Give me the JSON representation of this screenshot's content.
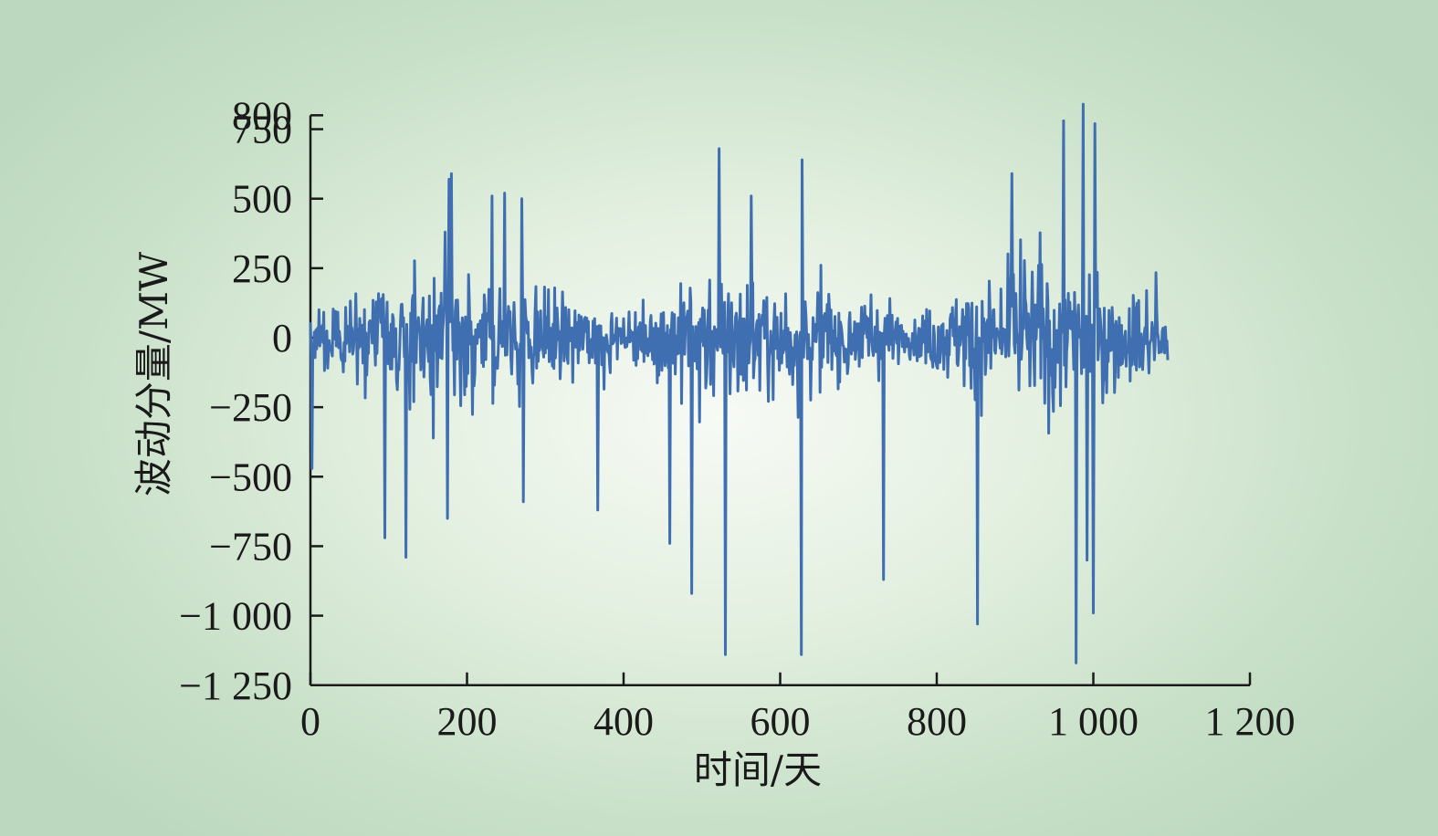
{
  "chart_data": {
    "type": "line",
    "xlabel": "时间/天",
    "ylabel": "波动分量/MW",
    "xlim": [
      0,
      1200
    ],
    "ylim": [
      -1250,
      800
    ],
    "x_ticks": [
      0,
      200,
      400,
      600,
      800,
      1000,
      1200
    ],
    "x_tick_labels": [
      "0",
      "200",
      "400",
      "600",
      "800",
      "1 000",
      "1 200"
    ],
    "y_ticks": [
      -1250,
      -1000,
      -750,
      -500,
      -250,
      0,
      250,
      500,
      750,
      800
    ],
    "y_tick_labels": [
      "−1 250",
      "−1 000",
      "−750",
      "−500",
      "−250",
      "0",
      "250",
      "500",
      "750",
      "800"
    ],
    "grid": false,
    "legend": "none",
    "colors": {
      "line": "#3f6fb0",
      "axis": "#1a1a1a"
    },
    "series": [
      {
        "x_start": 0,
        "x_end": 1095,
        "noise_envelope": [
          [
            0,
            120
          ],
          [
            30,
            150
          ],
          [
            90,
            250
          ],
          [
            180,
            300
          ],
          [
            270,
            260
          ],
          [
            360,
            160
          ],
          [
            405,
            60
          ],
          [
            420,
            160
          ],
          [
            500,
            280
          ],
          [
            580,
            310
          ],
          [
            650,
            250
          ],
          [
            740,
            150
          ],
          [
            765,
            60
          ],
          [
            790,
            150
          ],
          [
            900,
            320
          ],
          [
            980,
            330
          ],
          [
            1060,
            200
          ],
          [
            1095,
            120
          ]
        ],
        "peaks": [
          {
            "x": 2,
            "y": -470
          },
          {
            "x": 95,
            "y": -720
          },
          {
            "x": 122,
            "y": -790
          },
          {
            "x": 175,
            "y": -650
          },
          {
            "x": 177,
            "y": 570
          },
          {
            "x": 180,
            "y": 590
          },
          {
            "x": 232,
            "y": 510
          },
          {
            "x": 248,
            "y": 520
          },
          {
            "x": 270,
            "y": 500
          },
          {
            "x": 272,
            "y": -590
          },
          {
            "x": 367,
            "y": -620
          },
          {
            "x": 459,
            "y": -740
          },
          {
            "x": 487,
            "y": -920
          },
          {
            "x": 522,
            "y": 680
          },
          {
            "x": 530,
            "y": -1140
          },
          {
            "x": 563,
            "y": 510
          },
          {
            "x": 627,
            "y": -1140
          },
          {
            "x": 628,
            "y": 640
          },
          {
            "x": 732,
            "y": -870
          },
          {
            "x": 852,
            "y": -1030
          },
          {
            "x": 896,
            "y": 590
          },
          {
            "x": 962,
            "y": 780
          },
          {
            "x": 978,
            "y": -1170
          },
          {
            "x": 987,
            "y": 840
          },
          {
            "x": 992,
            "y": -800
          },
          {
            "x": 1000,
            "y": -990
          },
          {
            "x": 1002,
            "y": 770
          }
        ]
      }
    ]
  }
}
